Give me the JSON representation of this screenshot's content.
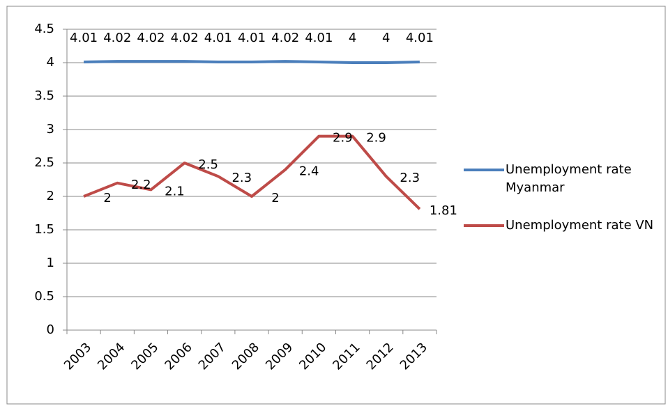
{
  "chart_data": {
    "type": "line",
    "categories": [
      "2003",
      "2004",
      "2005",
      "2006",
      "2007",
      "2008",
      "2009",
      "2010",
      "2011",
      "2012",
      "2013"
    ],
    "series": [
      {
        "name": "Unemployment rate Myanmar",
        "color": "#4a7ebb",
        "values": [
          4.01,
          4.02,
          4.02,
          4.02,
          4.01,
          4.01,
          4.02,
          4.01,
          4,
          4,
          4.01
        ]
      },
      {
        "name": "Unemployment rate VN",
        "color": "#be4b48",
        "values": [
          2,
          2.2,
          2.1,
          2.5,
          2.3,
          2,
          2.4,
          2.9,
          2.9,
          2.3,
          1.81
        ]
      }
    ],
    "ylim": [
      0,
      4.5
    ],
    "yticks": [
      0,
      0.5,
      1,
      1.5,
      2,
      2.5,
      3,
      3.5,
      4,
      4.5
    ],
    "grid": true,
    "legend": "right"
  }
}
